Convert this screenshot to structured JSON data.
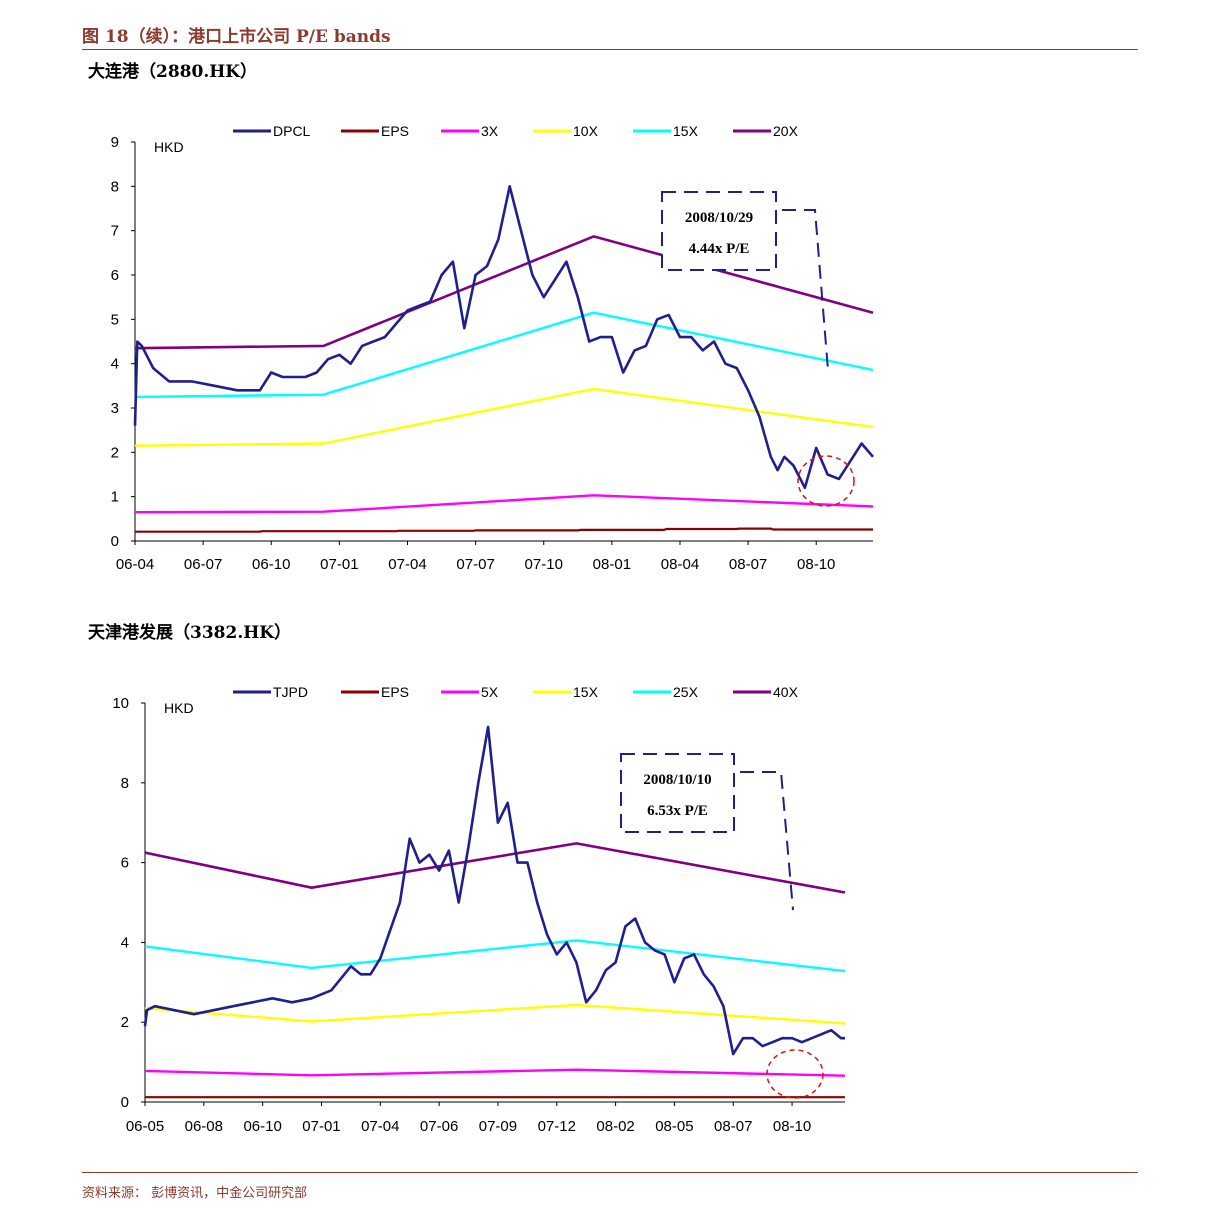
{
  "header": {
    "figure_title": "图 18（续）：港口上市公司 P/E bands"
  },
  "footer": {
    "source": "资料来源：  彭博资讯，中金公司研究部"
  },
  "chart_data": [
    {
      "type": "line",
      "title": "大连港（2880.HK）",
      "ylabel": "HKD",
      "ylim": [
        0,
        9
      ],
      "yticks": [
        "0",
        "1",
        "2",
        "3",
        "4",
        "5",
        "6",
        "7",
        "8",
        "9"
      ],
      "xticks": [
        "06-04",
        "06-07",
        "06-10",
        "07-01",
        "07-04",
        "07-07",
        "07-10",
        "08-01",
        "08-04",
        "08-07",
        "08-10"
      ],
      "xrange": [
        0,
        32.5
      ],
      "callout": {
        "date": "2008/10/29",
        "pe": "4.44x P/E"
      },
      "colors": {
        "price": "#1F1F8F",
        "eps": "#8B0000",
        "b1": "#FF00FF",
        "b2": "#FFFF00",
        "b3": "#00FFFF",
        "b4": "#800080"
      },
      "legend": [
        "DPCL",
        "EPS",
        "3X",
        "10X",
        "15X",
        "20X"
      ],
      "series": [
        {
          "name": "DPCL",
          "x": [
            0,
            0.1,
            0.3,
            0.8,
            1.5,
            2.5,
            3.5,
            4.5,
            5.5,
            6,
            6.5,
            7,
            7.5,
            8,
            8.5,
            9,
            9.5,
            10,
            10.5,
            11,
            11.5,
            12,
            12.5,
            13,
            13.5,
            14,
            14.5,
            15,
            15.5,
            16,
            16.5,
            17,
            17.5,
            18,
            18.5,
            19,
            19.5,
            20,
            20.5,
            21,
            21.5,
            22,
            22.5,
            23,
            23.5,
            24,
            24.5,
            25,
            25.5,
            26,
            26.5,
            27,
            27.5,
            28,
            28.3,
            28.6,
            29,
            29.5,
            30,
            30.5,
            31,
            31.5,
            32,
            32.5
          ],
          "values": [
            2.6,
            4.5,
            4.4,
            3.9,
            3.6,
            3.6,
            3.5,
            3.4,
            3.4,
            3.8,
            3.7,
            3.7,
            3.7,
            3.8,
            4.1,
            4.2,
            4.0,
            4.4,
            4.5,
            4.6,
            4.9,
            5.2,
            5.3,
            5.4,
            6.0,
            6.3,
            4.8,
            6.0,
            6.2,
            6.8,
            8.0,
            7.0,
            6.0,
            5.5,
            5.9,
            6.3,
            5.5,
            4.5,
            4.6,
            4.6,
            3.8,
            4.3,
            4.4,
            5.0,
            5.1,
            4.6,
            4.6,
            4.3,
            4.5,
            4.0,
            3.9,
            3.4,
            2.8,
            1.9,
            1.6,
            1.9,
            1.7,
            1.2,
            2.1,
            1.5,
            1.4,
            1.8,
            2.2,
            1.9
          ]
        },
        {
          "name": "EPS",
          "x": [
            0,
            5.5,
            5.6,
            11.5,
            11.6,
            14.9,
            15,
            19.5,
            19.6,
            23.3,
            23.4,
            26.5,
            26.6,
            28,
            28.1,
            32.5
          ],
          "values": [
            0.21,
            0.21,
            0.22,
            0.22,
            0.23,
            0.23,
            0.24,
            0.24,
            0.25,
            0.25,
            0.27,
            0.27,
            0.28,
            0.28,
            0.26,
            0.26
          ]
        },
        {
          "name": "3X",
          "x": [
            0,
            8.3,
            20.2,
            32.5
          ],
          "values": [
            0.65,
            0.66,
            1.03,
            0.78
          ]
        },
        {
          "name": "10X",
          "x": [
            0,
            8.3,
            20.2,
            32.5
          ],
          "values": [
            2.15,
            2.2,
            3.43,
            2.57
          ]
        },
        {
          "name": "15X",
          "x": [
            0,
            8.3,
            20.2,
            32.5
          ],
          "values": [
            3.25,
            3.3,
            5.15,
            3.86
          ]
        },
        {
          "name": "20X",
          "x": [
            0,
            8.3,
            20.2,
            32.5
          ],
          "values": [
            4.35,
            4.4,
            6.87,
            5.15
          ]
        }
      ]
    },
    {
      "type": "line",
      "title": "天津港发展（3382.HK）",
      "ylabel": "HKD",
      "ylim": [
        0,
        10
      ],
      "yticks": [
        "0",
        "2",
        "4",
        "6",
        "8",
        "10"
      ],
      "xticks": [
        "06-05",
        "06-08",
        "06-10",
        "07-01",
        "07-04",
        "07-06",
        "07-09",
        "07-12",
        "08-02",
        "08-05",
        "08-07",
        "08-10"
      ],
      "xrange": [
        0,
        35.7
      ],
      "callout": {
        "date": "2008/10/10",
        "pe": "6.53x P/E"
      },
      "colors": {
        "price": "#1F1F8F",
        "eps": "#8B0000",
        "b1": "#FF00FF",
        "b2": "#FFFF00",
        "b3": "#00FFFF",
        "b4": "#800080"
      },
      "legend": [
        "TJPD",
        "EPS",
        "5X",
        "15X",
        "25X",
        "40X"
      ],
      "series": [
        {
          "name": "TJPD",
          "x": [
            0,
            0.1,
            0.5,
            1.5,
            2.5,
            3.5,
            4.5,
            5.5,
            6.5,
            7.5,
            8.5,
            9.5,
            10.5,
            11,
            11.5,
            12,
            12.5,
            13,
            13.5,
            14,
            14.5,
            15,
            15.5,
            16,
            16.5,
            17,
            17.5,
            18,
            18.5,
            19,
            19.5,
            20,
            20.5,
            21,
            21.5,
            22,
            22.5,
            23,
            23.5,
            24,
            24.5,
            25,
            25.5,
            26,
            26.5,
            27,
            27.5,
            28,
            28.5,
            29,
            29.5,
            30,
            30.5,
            31,
            31.5,
            32,
            32.5,
            33,
            33.5,
            34,
            34.5,
            35,
            35.5,
            35.7
          ],
          "values": [
            1.9,
            2.3,
            2.4,
            2.3,
            2.2,
            2.3,
            2.4,
            2.5,
            2.6,
            2.5,
            2.6,
            2.8,
            3.4,
            3.2,
            3.2,
            3.6,
            4.3,
            5.0,
            6.6,
            6.0,
            6.2,
            5.8,
            6.3,
            5.0,
            6.4,
            8.0,
            9.4,
            7.0,
            7.5,
            6.0,
            6.0,
            5.0,
            4.2,
            3.7,
            4.0,
            3.5,
            2.5,
            2.8,
            3.3,
            3.5,
            4.4,
            4.6,
            4.0,
            3.8,
            3.7,
            3.0,
            3.6,
            3.7,
            3.2,
            2.9,
            2.4,
            1.2,
            1.6,
            1.6,
            1.4,
            1.5,
            1.6,
            1.6,
            1.5,
            1.6,
            1.7,
            1.8,
            1.6,
            1.6
          ]
        },
        {
          "name": "EPS",
          "x": [
            0,
            35.7
          ],
          "values": [
            0.12,
            0.12
          ]
        },
        {
          "name": "5X",
          "x": [
            0,
            8.5,
            22,
            35.7
          ],
          "values": [
            0.78,
            0.67,
            0.81,
            0.66
          ]
        },
        {
          "name": "15X",
          "x": [
            0,
            8.5,
            22,
            35.7
          ],
          "values": [
            2.35,
            2.02,
            2.43,
            1.97
          ]
        },
        {
          "name": "25X",
          "x": [
            0,
            8.5,
            22,
            35.7
          ],
          "values": [
            3.9,
            3.36,
            4.05,
            3.28
          ]
        },
        {
          "name": "40X",
          "x": [
            0,
            8.5,
            22,
            35.7
          ],
          "values": [
            6.25,
            5.37,
            6.48,
            5.25
          ]
        }
      ]
    }
  ]
}
